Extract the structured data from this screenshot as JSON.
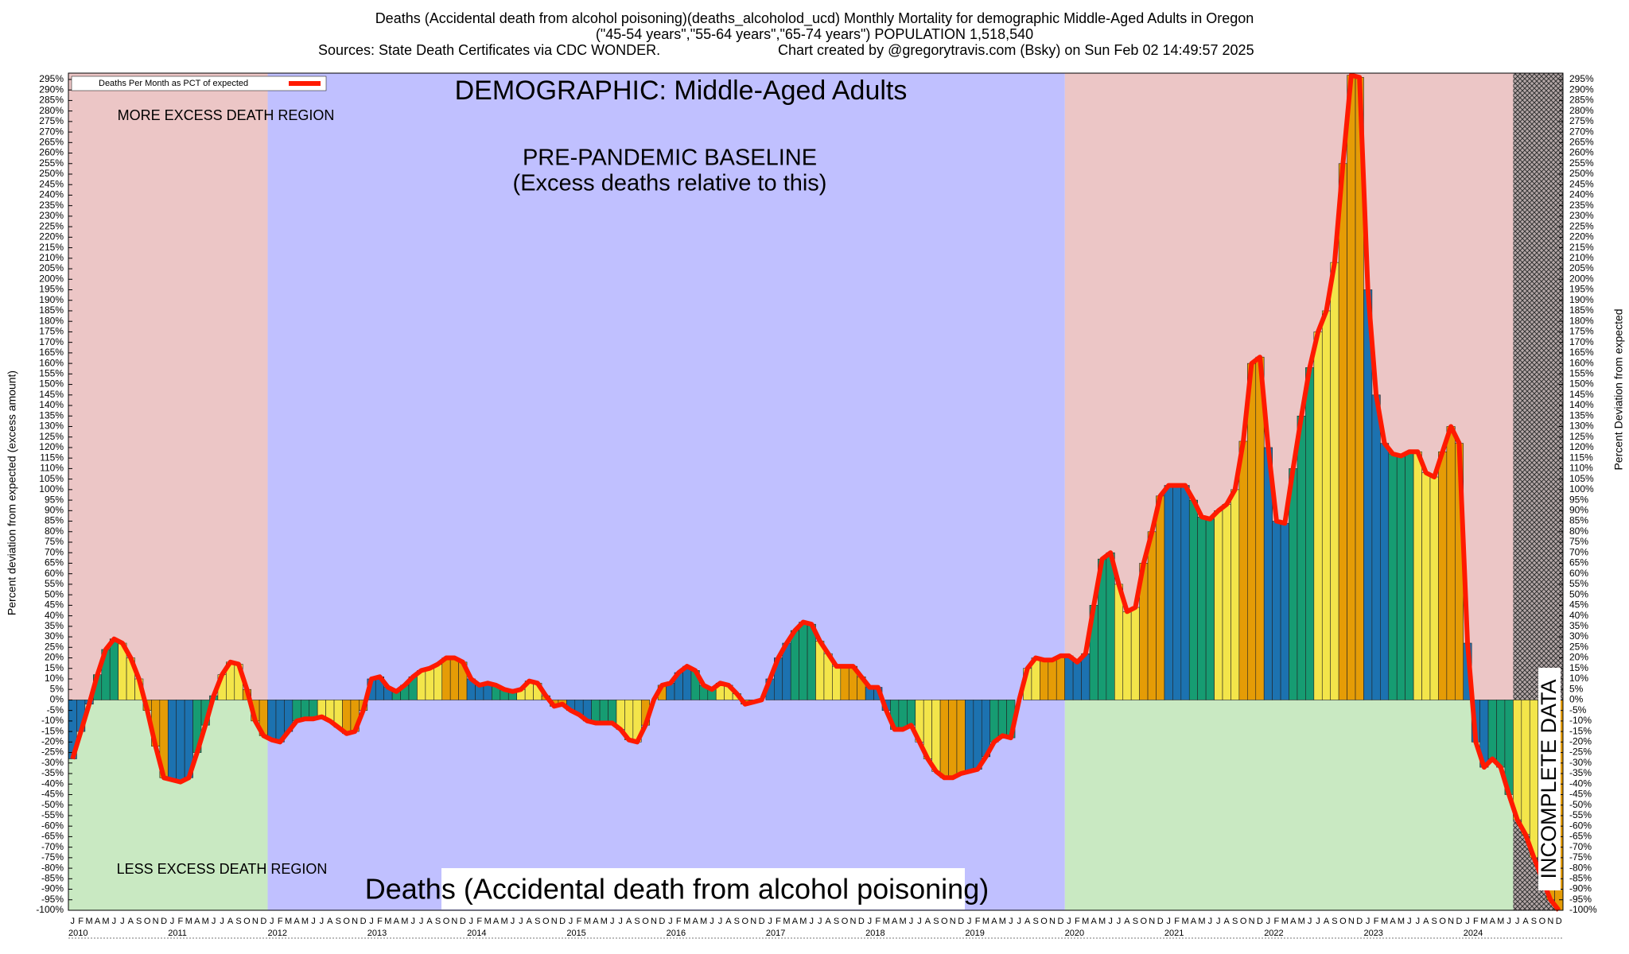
{
  "chart_data": {
    "type": "bar",
    "title": "Deaths (Accidental death from alcohol poisoning)(deaths_alcoholod_ucd) Monthly Mortality for demographic Middle-Aged Adults in Oregon",
    "subtitle": "(\"45-54 years\",\"55-64 years\",\"65-74 years\") POPULATION 1,518,540",
    "sources": "Sources: State Death Certificates via CDC WONDER.",
    "credit": "Chart created by @gregorytravis.com (Bsky) on Sun Feb 02 14:49:57 2025",
    "legend_label": "Deaths Per Month as PCT of expected",
    "demographic_label": "DEMOGRAPHIC: Middle-Aged Adults",
    "more_label": "MORE EXCESS DEATH REGION",
    "less_label": "LESS EXCESS DEATH REGION",
    "baseline_label": "PRE-PANDEMIC BASELINE",
    "baseline_sublabel": "(Excess deaths relative to this)",
    "bottom_label": "Deaths (Accidental death from alcohol poisoning)",
    "incomplete_label": "INCOMPLETE DATA",
    "ylabel": "Percent deviation from expected (excess amount)",
    "y2label": "Percent Deviation from expected",
    "year_labels": [
      "2010",
      "2011",
      "2012",
      "2013",
      "2014",
      "2015",
      "2016",
      "2017",
      "2018",
      "2019",
      "2020",
      "2021",
      "2022",
      "2023",
      "2024"
    ],
    "baseline_years": [
      "2012",
      "2019"
    ],
    "incomplete_count": 6,
    "categories": [
      "J",
      "F",
      "M",
      "A",
      "M",
      "J",
      "J",
      "A",
      "S",
      "O",
      "N",
      "D",
      "J",
      "F",
      "M",
      "A",
      "M",
      "J",
      "J",
      "A",
      "S",
      "O",
      "N",
      "D",
      "J",
      "F",
      "M",
      "A",
      "M",
      "J",
      "J",
      "A",
      "S",
      "O",
      "N",
      "D",
      "J",
      "F",
      "M",
      "A",
      "M",
      "J",
      "J",
      "A",
      "S",
      "O",
      "N",
      "D",
      "J",
      "F",
      "M",
      "A",
      "M",
      "J",
      "J",
      "A",
      "S",
      "O",
      "N",
      "D",
      "J",
      "F",
      "M",
      "A",
      "M",
      "J",
      "J",
      "A",
      "S",
      "O",
      "N",
      "D",
      "J",
      "F",
      "M",
      "A",
      "M",
      "J",
      "J",
      "A",
      "S",
      "O",
      "N",
      "D",
      "J",
      "F",
      "M",
      "A",
      "M",
      "J",
      "J",
      "A",
      "S",
      "O",
      "N",
      "D",
      "J",
      "F",
      "M",
      "A",
      "M",
      "J",
      "J",
      "A",
      "S",
      "O",
      "N",
      "D",
      "J",
      "F",
      "M",
      "A",
      "M",
      "J",
      "J",
      "A",
      "S",
      "O",
      "N",
      "D",
      "J",
      "F",
      "M",
      "A",
      "M",
      "J",
      "J",
      "A",
      "S",
      "O",
      "N",
      "D",
      "J",
      "F",
      "M",
      "A",
      "M",
      "J",
      "J",
      "A",
      "S",
      "O",
      "N",
      "D",
      "J",
      "F",
      "M",
      "A",
      "M",
      "J",
      "J",
      "A",
      "S",
      "O",
      "N",
      "D",
      "J",
      "F",
      "M",
      "A",
      "M",
      "J",
      "J",
      "A",
      "S",
      "O",
      "N",
      "D",
      "J",
      "F",
      "M",
      "A",
      "M",
      "J",
      "J",
      "A",
      "S",
      "O",
      "N",
      "D"
    ],
    "values": [
      -28,
      -15,
      -2,
      12,
      24,
      29,
      27,
      20,
      10,
      -5,
      -22,
      -37,
      -38,
      -39,
      -37,
      -25,
      -12,
      2,
      12,
      18,
      17,
      5,
      -10,
      -17,
      -19,
      -20,
      -15,
      -10,
      -9,
      -9,
      -8,
      -10,
      -13,
      -16,
      -15,
      -5,
      10,
      11,
      6,
      4,
      7,
      11,
      14,
      15,
      17,
      20,
      20,
      18,
      10,
      7,
      8,
      7,
      5,
      4,
      5,
      9,
      8,
      2,
      -3,
      -2,
      -5,
      -7,
      -10,
      -11,
      -11,
      -11,
      -14,
      -19,
      -20,
      -12,
      0,
      7,
      8,
      13,
      16,
      14,
      7,
      5,
      8,
      7,
      3,
      -2,
      -1,
      0,
      10,
      20,
      27,
      33,
      37,
      36,
      28,
      22,
      16,
      16,
      16,
      11,
      6,
      6,
      -5,
      -14,
      -14,
      -12,
      -20,
      -28,
      -34,
      -37,
      -37,
      -35,
      -34,
      -33,
      -27,
      -20,
      -17,
      -18,
      0,
      15,
      20,
      19,
      19,
      21,
      21,
      18,
      22,
      45,
      67,
      70,
      55,
      42,
      44,
      65,
      80,
      97,
      102,
      102,
      102,
      95,
      87,
      86,
      90,
      93,
      100,
      123,
      160,
      163,
      120,
      85,
      84,
      110,
      135,
      158,
      175,
      185,
      208,
      255,
      297,
      296,
      195,
      145,
      122,
      117,
      116,
      118,
      118,
      108,
      106,
      118,
      130,
      122,
      27,
      -20,
      -32,
      -28,
      -32,
      -45,
      -57,
      -64,
      -75,
      -85,
      -95,
      -100
    ],
    "quarter_colors": [
      "#1c72b0",
      "#169c72",
      "#f3e54a",
      "#e59c06"
    ],
    "line_color": "#ff1a00",
    "region_colors": {
      "more": "#ecc6c6",
      "less": "#c9e9c2",
      "baseline": "#c0c0ff"
    },
    "ylim": [
      -100,
      298
    ],
    "yticks": [
      {
        "value": -100,
        "label": "-100%"
      },
      {
        "value": -95,
        "label": "-95%"
      },
      {
        "value": -90,
        "label": "-90%"
      },
      {
        "value": -85,
        "label": "-85%"
      },
      {
        "value": -80,
        "label": "-80%"
      },
      {
        "value": -75,
        "label": "-75%"
      },
      {
        "value": -70,
        "label": "-70%"
      },
      {
        "value": -65,
        "label": "-65%"
      },
      {
        "value": -60,
        "label": "-60%"
      },
      {
        "value": -55,
        "label": "-55%"
      },
      {
        "value": -50,
        "label": "-50%"
      },
      {
        "value": -45,
        "label": "-45%"
      },
      {
        "value": -40,
        "label": "-40%"
      },
      {
        "value": -35,
        "label": "-35%"
      },
      {
        "value": -30,
        "label": "-30%"
      },
      {
        "value": -25,
        "label": "-25%"
      },
      {
        "value": -20,
        "label": "-20%"
      },
      {
        "value": -15,
        "label": "-15%"
      },
      {
        "value": -10,
        "label": "-10%"
      },
      {
        "value": -5,
        "label": "-5%"
      },
      {
        "value": 0,
        "label": "0%"
      },
      {
        "value": 5,
        "label": "5%"
      },
      {
        "value": 10,
        "label": "10%"
      },
      {
        "value": 15,
        "label": "15%"
      },
      {
        "value": 20,
        "label": "20%"
      },
      {
        "value": 25,
        "label": "25%"
      },
      {
        "value": 30,
        "label": "30%"
      },
      {
        "value": 35,
        "label": "35%"
      },
      {
        "value": 40,
        "label": "40%"
      },
      {
        "value": 45,
        "label": "45%"
      },
      {
        "value": 50,
        "label": "50%"
      },
      {
        "value": 55,
        "label": "55%"
      },
      {
        "value": 60,
        "label": "60%"
      },
      {
        "value": 65,
        "label": "65%"
      },
      {
        "value": 70,
        "label": "70%"
      },
      {
        "value": 75,
        "label": "75%"
      },
      {
        "value": 80,
        "label": "80%"
      },
      {
        "value": 85,
        "label": "85%"
      },
      {
        "value": 90,
        "label": "90%"
      },
      {
        "value": 95,
        "label": "95%"
      },
      {
        "value": 100,
        "label": "100%"
      },
      {
        "value": 105,
        "label": "105%"
      },
      {
        "value": 110,
        "label": "110%"
      },
      {
        "value": 115,
        "label": "115%"
      },
      {
        "value": 120,
        "label": "120%"
      },
      {
        "value": 125,
        "label": "125%"
      },
      {
        "value": 130,
        "label": "130%"
      },
      {
        "value": 135,
        "label": "135%"
      },
      {
        "value": 140,
        "label": "140%"
      },
      {
        "value": 145,
        "label": "145%"
      },
      {
        "value": 150,
        "label": "150%"
      },
      {
        "value": 155,
        "label": "155%"
      },
      {
        "value": 160,
        "label": "160%"
      },
      {
        "value": 165,
        "label": "165%"
      },
      {
        "value": 170,
        "label": "170%"
      },
      {
        "value": 175,
        "label": "175%"
      },
      {
        "value": 180,
        "label": "180%"
      },
      {
        "value": 185,
        "label": "185%"
      },
      {
        "value": 190,
        "label": "190%"
      },
      {
        "value": 195,
        "label": "195%"
      },
      {
        "value": 200,
        "label": "200%"
      },
      {
        "value": 205,
        "label": "205%"
      },
      {
        "value": 210,
        "label": "210%"
      },
      {
        "value": 215,
        "label": "215%"
      },
      {
        "value": 220,
        "label": "220%"
      },
      {
        "value": 225,
        "label": "225%"
      },
      {
        "value": 230,
        "label": "230%"
      },
      {
        "value": 235,
        "label": "235%"
      },
      {
        "value": 240,
        "label": "240%"
      },
      {
        "value": 245,
        "label": "245%"
      },
      {
        "value": 250,
        "label": "250%"
      },
      {
        "value": 255,
        "label": "255%"
      },
      {
        "value": 260,
        "label": "260%"
      },
      {
        "value": 265,
        "label": "265%"
      },
      {
        "value": 270,
        "label": "270%"
      },
      {
        "value": 275,
        "label": "275%"
      },
      {
        "value": 280,
        "label": "280%"
      },
      {
        "value": 285,
        "label": "285%"
      },
      {
        "value": 290,
        "label": "290%"
      },
      {
        "value": 295,
        "label": "295%"
      }
    ]
  }
}
